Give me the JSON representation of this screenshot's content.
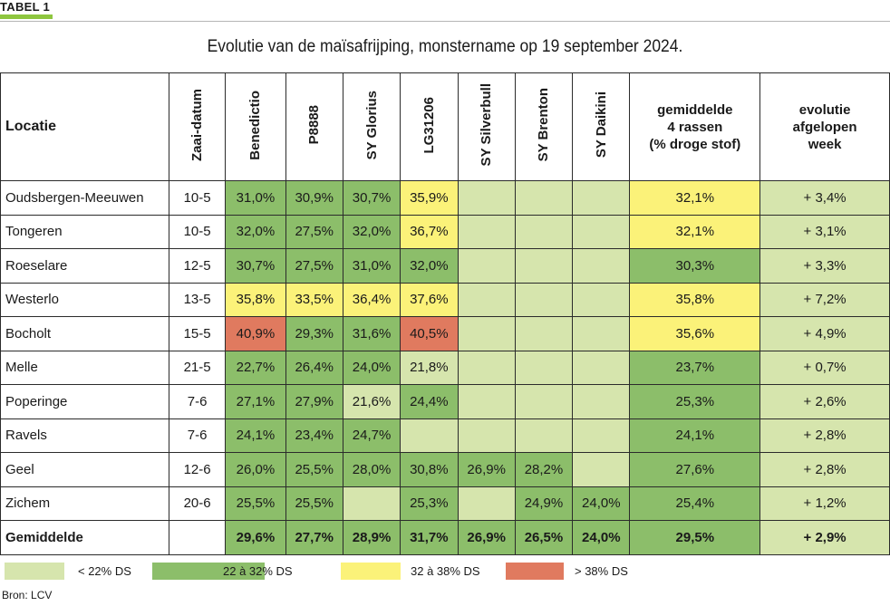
{
  "tag": "TABEL 1",
  "title": "Evolutie van de maïsafrijping, monstername op 19 september 2024.",
  "headers": {
    "location": "Locatie",
    "sow_date": "Zaai-datum",
    "varieties": [
      "Benedictio",
      "P8888",
      "SY Glorius",
      "LG31206",
      "SY Silverbull",
      "SY Brenton",
      "SY Daikini"
    ],
    "average_lines": [
      "gemiddelde",
      "4 rassen",
      "(% droge stof)"
    ],
    "evolution_lines": [
      "evolutie",
      "afgelopen",
      "week"
    ]
  },
  "rows": [
    {
      "location": "Oudsbergen-Meeuwen",
      "sow": "10-5",
      "cells": [
        {
          "v": "31,0%",
          "c": "green"
        },
        {
          "v": "30,9%",
          "c": "green"
        },
        {
          "v": "30,7%",
          "c": "green"
        },
        {
          "v": "35,9%",
          "c": "yellow"
        },
        {
          "v": "",
          "c": "light"
        },
        {
          "v": "",
          "c": "light"
        },
        {
          "v": "",
          "c": "light"
        }
      ],
      "avg": {
        "v": "32,1%",
        "c": "yellow"
      },
      "evolution": "+ 3,4%"
    },
    {
      "location": "Tongeren",
      "sow": "10-5",
      "cells": [
        {
          "v": "32,0%",
          "c": "green"
        },
        {
          "v": "27,5%",
          "c": "green"
        },
        {
          "v": "32,0%",
          "c": "green"
        },
        {
          "v": "36,7%",
          "c": "yellow"
        },
        {
          "v": "",
          "c": "light"
        },
        {
          "v": "",
          "c": "light"
        },
        {
          "v": "",
          "c": "light"
        }
      ],
      "avg": {
        "v": "32,1%",
        "c": "yellow"
      },
      "evolution": "+ 3,1%"
    },
    {
      "location": "Roeselare",
      "sow": "12-5",
      "cells": [
        {
          "v": "30,7%",
          "c": "green"
        },
        {
          "v": "27,5%",
          "c": "green"
        },
        {
          "v": "31,0%",
          "c": "green"
        },
        {
          "v": "32,0%",
          "c": "green"
        },
        {
          "v": "",
          "c": "light"
        },
        {
          "v": "",
          "c": "light"
        },
        {
          "v": "",
          "c": "light"
        }
      ],
      "avg": {
        "v": "30,3%",
        "c": "green"
      },
      "evolution": "+ 3,3%"
    },
    {
      "location": "Westerlo",
      "sow": "13-5",
      "cells": [
        {
          "v": "35,8%",
          "c": "yellow"
        },
        {
          "v": "33,5%",
          "c": "yellow"
        },
        {
          "v": "36,4%",
          "c": "yellow"
        },
        {
          "v": "37,6%",
          "c": "yellow"
        },
        {
          "v": "",
          "c": "light"
        },
        {
          "v": "",
          "c": "light"
        },
        {
          "v": "",
          "c": "light"
        }
      ],
      "avg": {
        "v": "35,8%",
        "c": "yellow"
      },
      "evolution": "+ 7,2%"
    },
    {
      "location": "Bocholt",
      "sow": "15-5",
      "cells": [
        {
          "v": "40,9%",
          "c": "red"
        },
        {
          "v": "29,3%",
          "c": "green"
        },
        {
          "v": "31,6%",
          "c": "green"
        },
        {
          "v": "40,5%",
          "c": "red"
        },
        {
          "v": "",
          "c": "light"
        },
        {
          "v": "",
          "c": "light"
        },
        {
          "v": "",
          "c": "light"
        }
      ],
      "avg": {
        "v": "35,6%",
        "c": "yellow"
      },
      "evolution": "+ 4,9%"
    },
    {
      "location": "Melle",
      "sow": "21-5",
      "cells": [
        {
          "v": "22,7%",
          "c": "green"
        },
        {
          "v": "26,4%",
          "c": "green"
        },
        {
          "v": "24,0%",
          "c": "green"
        },
        {
          "v": "21,8%",
          "c": "light"
        },
        {
          "v": "",
          "c": "light"
        },
        {
          "v": "",
          "c": "light"
        },
        {
          "v": "",
          "c": "light"
        }
      ],
      "avg": {
        "v": "23,7%",
        "c": "green"
      },
      "evolution": "+ 0,7%"
    },
    {
      "location": "Poperinge",
      "sow": "7-6",
      "cells": [
        {
          "v": "27,1%",
          "c": "green"
        },
        {
          "v": "27,9%",
          "c": "green"
        },
        {
          "v": "21,6%",
          "c": "light"
        },
        {
          "v": "24,4%",
          "c": "green"
        },
        {
          "v": "",
          "c": "light"
        },
        {
          "v": "",
          "c": "light"
        },
        {
          "v": "",
          "c": "light"
        }
      ],
      "avg": {
        "v": "25,3%",
        "c": "green"
      },
      "evolution": "+ 2,6%"
    },
    {
      "location": "Ravels",
      "sow": "7-6",
      "cells": [
        {
          "v": "24,1%",
          "c": "green"
        },
        {
          "v": "23,4%",
          "c": "green"
        },
        {
          "v": "24,7%",
          "c": "green"
        },
        {
          "v": "",
          "c": "light"
        },
        {
          "v": "",
          "c": "light"
        },
        {
          "v": "",
          "c": "light"
        },
        {
          "v": "",
          "c": "light"
        }
      ],
      "avg": {
        "v": "24,1%",
        "c": "green"
      },
      "evolution": "+ 2,8%"
    },
    {
      "location": "Geel",
      "sow": "12-6",
      "cells": [
        {
          "v": "26,0%",
          "c": "green"
        },
        {
          "v": "25,5%",
          "c": "green"
        },
        {
          "v": "28,0%",
          "c": "green"
        },
        {
          "v": "30,8%",
          "c": "green"
        },
        {
          "v": "26,9%",
          "c": "green"
        },
        {
          "v": "28,2%",
          "c": "green"
        },
        {
          "v": "",
          "c": "light"
        }
      ],
      "avg": {
        "v": "27,6%",
        "c": "green"
      },
      "evolution": "+ 2,8%"
    },
    {
      "location": "Zichem",
      "sow": "20-6",
      "cells": [
        {
          "v": "25,5%",
          "c": "green"
        },
        {
          "v": "25,5%",
          "c": "green"
        },
        {
          "v": "",
          "c": "light"
        },
        {
          "v": "25,3%",
          "c": "green"
        },
        {
          "v": "",
          "c": "light"
        },
        {
          "v": "24,9%",
          "c": "green"
        },
        {
          "v": "24,0%",
          "c": "green"
        }
      ],
      "avg": {
        "v": "25,4%",
        "c": "green"
      },
      "evolution": "+ 1,2%"
    }
  ],
  "average_row": {
    "label": "Gemiddelde",
    "sow": "",
    "cells": [
      {
        "v": "29,6%",
        "c": "green"
      },
      {
        "v": "27,7%",
        "c": "green"
      },
      {
        "v": "28,9%",
        "c": "green"
      },
      {
        "v": "31,7%",
        "c": "green"
      },
      {
        "v": "26,9%",
        "c": "green"
      },
      {
        "v": "26,5%",
        "c": "green"
      },
      {
        "v": "24,0%",
        "c": "green"
      }
    ],
    "avg": {
      "v": "29,5%",
      "c": "green"
    },
    "evolution": "+ 2,9%"
  },
  "legend": [
    {
      "label": "< 22% DS",
      "color": "#d6e5ad"
    },
    {
      "label": "22 à 32% DS",
      "color": "#8cbe6a"
    },
    {
      "label": "32 à 38% DS",
      "color": "#fbf279"
    },
    {
      "label": "> 38% DS",
      "color": "#e07a5f"
    }
  ],
  "source": "Bron: LCV",
  "colors": {
    "light": "#d6e5ad",
    "green": "#8cbe6a",
    "yellow": "#fbf279",
    "red": "#e07a5f",
    "accent": "#8ec63f"
  }
}
